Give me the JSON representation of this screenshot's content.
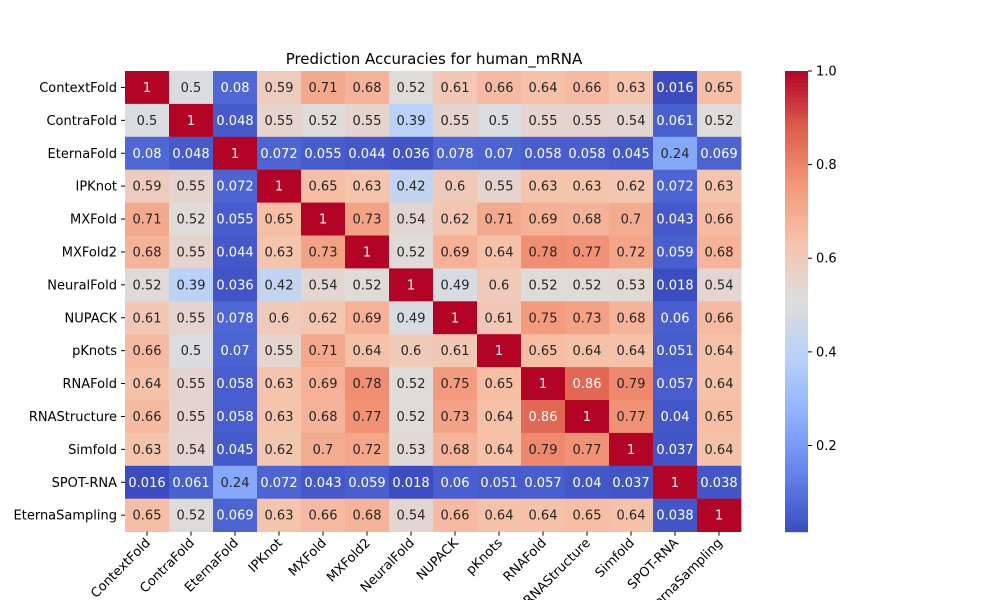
{
  "chart_data": {
    "type": "heatmap",
    "title": "Prediction Accuracies for human_mRNA",
    "xlabel": "",
    "ylabel": "",
    "colormap": "coolwarm",
    "labels": [
      "ContextFold",
      "ContraFold",
      "EternaFold",
      "IPKnot",
      "MXFold",
      "MXFold2",
      "NeuralFold",
      "NUPACK",
      "pKnots",
      "RNAFold",
      "RNAStructure",
      "Simfold",
      "SPOT-RNA",
      "EternaSampling"
    ],
    "x_tick_labels": [
      "ContextFold",
      "ContraFold",
      "EternaFold",
      "IPKnot",
      "MXFold",
      "MXFold2",
      "NeuralFold",
      "NUPACK",
      "pKnots",
      "RNAFold",
      "RNAStructure",
      "Simfold",
      "SPOT-RNA",
      "EternaSampling"
    ],
    "values": [
      [
        1,
        0.5,
        0.08,
        0.59,
        0.71,
        0.68,
        0.52,
        0.61,
        0.66,
        0.64,
        0.66,
        0.63,
        0.016,
        0.65
      ],
      [
        0.5,
        1,
        0.048,
        0.55,
        0.52,
        0.55,
        0.39,
        0.55,
        0.5,
        0.55,
        0.55,
        0.54,
        0.061,
        0.52
      ],
      [
        0.08,
        0.048,
        1,
        0.072,
        0.055,
        0.044,
        0.036,
        0.078,
        0.07,
        0.058,
        0.058,
        0.045,
        0.24,
        0.069
      ],
      [
        0.59,
        0.55,
        0.072,
        1,
        0.65,
        0.63,
        0.42,
        0.6,
        0.55,
        0.63,
        0.63,
        0.62,
        0.072,
        0.63
      ],
      [
        0.71,
        0.52,
        0.055,
        0.65,
        1,
        0.73,
        0.54,
        0.62,
        0.71,
        0.69,
        0.68,
        0.7,
        0.043,
        0.66
      ],
      [
        0.68,
        0.55,
        0.044,
        0.63,
        0.73,
        1,
        0.52,
        0.69,
        0.64,
        0.78,
        0.77,
        0.72,
        0.059,
        0.68
      ],
      [
        0.52,
        0.39,
        0.036,
        0.42,
        0.54,
        0.52,
        1,
        0.49,
        0.6,
        0.52,
        0.52,
        0.53,
        0.018,
        0.54
      ],
      [
        0.61,
        0.55,
        0.078,
        0.6,
        0.62,
        0.69,
        0.49,
        1,
        0.61,
        0.75,
        0.73,
        0.68,
        0.06,
        0.66
      ],
      [
        0.66,
        0.5,
        0.07,
        0.55,
        0.71,
        0.64,
        0.6,
        0.61,
        1,
        0.65,
        0.64,
        0.64,
        0.051,
        0.64
      ],
      [
        0.64,
        0.55,
        0.058,
        0.63,
        0.69,
        0.78,
        0.52,
        0.75,
        0.65,
        1,
        0.86,
        0.79,
        0.057,
        0.64
      ],
      [
        0.66,
        0.55,
        0.058,
        0.63,
        0.68,
        0.77,
        0.52,
        0.73,
        0.64,
        0.86,
        1,
        0.77,
        0.04,
        0.65
      ],
      [
        0.63,
        0.54,
        0.045,
        0.62,
        0.7,
        0.72,
        0.53,
        0.68,
        0.64,
        0.79,
        0.77,
        1,
        0.037,
        0.64
      ],
      [
        0.016,
        0.061,
        0.24,
        0.072,
        0.043,
        0.059,
        0.018,
        0.06,
        0.051,
        0.057,
        0.04,
        0.037,
        1,
        0.038
      ],
      [
        0.65,
        0.52,
        0.069,
        0.63,
        0.66,
        0.68,
        0.54,
        0.66,
        0.64,
        0.64,
        0.65,
        0.64,
        0.038,
        1
      ]
    ],
    "colorbar": {
      "min": 0.016,
      "max": 1.0,
      "ticks": [
        0.2,
        0.4,
        0.6,
        0.8,
        1.0
      ],
      "tick_labels": [
        "0.2",
        "0.4",
        "0.6",
        "0.8",
        "1.0"
      ]
    },
    "grid": false,
    "legend": "colorbar-right"
  }
}
